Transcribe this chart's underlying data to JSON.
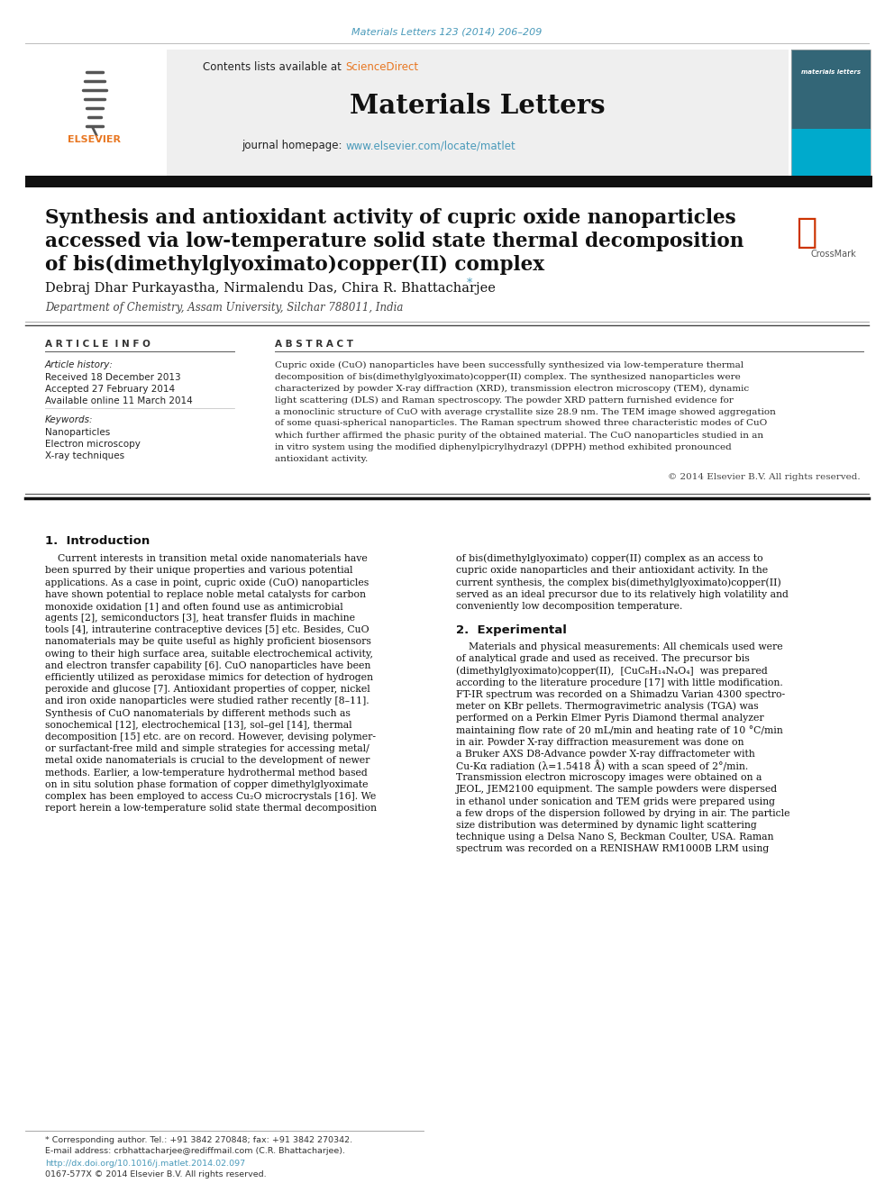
{
  "page_bg": "#ffffff",
  "top_citation": "Materials Letters 123 (2014) 206–209",
  "top_citation_color": "#4a9aba",
  "header_bg": "#f0f0f0",
  "header_contents": "Contents lists available at ",
  "header_sciencedirect": "ScienceDirect",
  "header_sciencedirect_color": "#e87722",
  "journal_title": "Materials Letters",
  "journal_homepage_prefix": "journal homepage: ",
  "journal_homepage_url": "www.elsevier.com/locate/matlet",
  "journal_homepage_url_color": "#4a9aba",
  "thick_bar_color": "#1a1a1a",
  "article_title_line1": "Synthesis and antioxidant activity of cupric oxide nanoparticles",
  "article_title_line2": "accessed via low-temperature solid state thermal decomposition",
  "article_title_line3": "of bis(dimethylglyoximato)copper(II) complex",
  "authors": "Debraj Dhar Purkayastha, Nirmalendu Das, Chira R. Bhattacharjee",
  "author_star": "*",
  "affiliation": "Department of Chemistry, Assam University, Silchar 788011, India",
  "section_article_info": "A R T I C L E  I N F O",
  "section_abstract": "A B S T R A C T",
  "article_history_label": "Article history:",
  "received": "Received 18 December 2013",
  "accepted": "Accepted 27 February 2014",
  "available": "Available online 11 March 2014",
  "keywords_label": "Keywords:",
  "keywords": [
    "Nanoparticles",
    "Electron microscopy",
    "X-ray techniques"
  ],
  "copyright": "© 2014 Elsevier B.V. All rights reserved.",
  "intro_heading": "1.  Introduction",
  "exp_heading": "2.  Experimental",
  "footer_star_note": "* Corresponding author. Tel.: +91 3842 270848; fax: +91 3842 270342.",
  "footer_email": "E-mail address: crbhattacharjee@rediffmail.com (C.R. Bhattacharjee).",
  "footer_doi": "http://dx.doi.org/10.1016/j.matlet.2014.02.097",
  "footer_issn": "0167-577X © 2014 Elsevier B.V. All rights reserved.",
  "link_color": "#4a9aba",
  "orange_color": "#e87722",
  "abstract_lines": [
    "Cupric oxide (CuO) nanoparticles have been successfully synthesized via low-temperature thermal",
    "decomposition of bis(dimethylglyoximato)copper(II) complex. The synthesized nanoparticles were",
    "characterized by powder X-ray diffraction (XRD), transmission electron microscopy (TEM), dynamic",
    "light scattering (DLS) and Raman spectroscopy. The powder XRD pattern furnished evidence for",
    "a monoclinic structure of CuO with average crystallite size 28.9 nm. The TEM image showed aggregation",
    "of some quasi-spherical nanoparticles. The Raman spectrum showed three characteristic modes of CuO",
    "which further affirmed the phasic purity of the obtained material. The CuO nanoparticles studied in an",
    "in vitro system using the modified diphenylpicrylhydrazyl (DPPH) method exhibited pronounced",
    "antioxidant activity."
  ],
  "intro_left_lines": [
    "    Current interests in transition metal oxide nanomaterials have",
    "been spurred by their unique properties and various potential",
    "applications. As a case in point, cupric oxide (CuO) nanoparticles",
    "have shown potential to replace noble metal catalysts for carbon",
    "monoxide oxidation [1] and often found use as antimicrobial",
    "agents [2], semiconductors [3], heat transfer fluids in machine",
    "tools [4], intrauterine contraceptive devices [5] etc. Besides, CuO",
    "nanomaterials may be quite useful as highly proficient biosensors",
    "owing to their high surface area, suitable electrochemical activity,",
    "and electron transfer capability [6]. CuO nanoparticles have been",
    "efficiently utilized as peroxidase mimics for detection of hydrogen",
    "peroxide and glucose [7]. Antioxidant properties of copper, nickel",
    "and iron oxide nanoparticles were studied rather recently [8–11].",
    "Synthesis of CuO nanomaterials by different methods such as",
    "sonochemical [12], electrochemical [13], sol–gel [14], thermal",
    "decomposition [15] etc. are on record. However, devising polymer-",
    "or surfactant-free mild and simple strategies for accessing metal/",
    "metal oxide nanomaterials is crucial to the development of newer",
    "methods. Earlier, a low-temperature hydrothermal method based",
    "on in situ solution phase formation of copper dimethylglyoximate",
    "complex has been employed to access Cu₂O microcrystals [16]. We",
    "report herein a low-temperature solid state thermal decomposition"
  ],
  "intro_right_lines": [
    "of bis(dimethylglyoximato) copper(II) complex as an access to",
    "cupric oxide nanoparticles and their antioxidant activity. In the",
    "current synthesis, the complex bis(dimethylglyoximato)copper(II)",
    "served as an ideal precursor due to its relatively high volatility and",
    "conveniently low decomposition temperature."
  ],
  "exp_lines": [
    "    Materials and physical measurements: All chemicals used were",
    "of analytical grade and used as received. The precursor bis",
    "(dimethylglyoximato)copper(II),  [CuC₈H₁₄N₄O₄]  was prepared",
    "according to the literature procedure [17] with little modification.",
    "FT-IR spectrum was recorded on a Shimadzu Varian 4300 spectro-",
    "meter on KBr pellets. Thermogravimetric analysis (TGA) was",
    "performed on a Perkin Elmer Pyris Diamond thermal analyzer",
    "maintaining flow rate of 20 mL/min and heating rate of 10 °C/min",
    "in air. Powder X-ray diffraction measurement was done on",
    "a Bruker AXS D8-Advance powder X-ray diffractometer with",
    "Cu-Kα radiation (λ=1.5418 Å) with a scan speed of 2°/min.",
    "Transmission electron microscopy images were obtained on a",
    "JEOL, JEM2100 equipment. The sample powders were dispersed",
    "in ethanol under sonication and TEM grids were prepared using",
    "a few drops of the dispersion followed by drying in air. The particle",
    "size distribution was determined by dynamic light scattering",
    "technique using a Delsa Nano S, Beckman Coulter, USA. Raman",
    "spectrum was recorded on a RENISHAW RM1000B LRM using"
  ]
}
